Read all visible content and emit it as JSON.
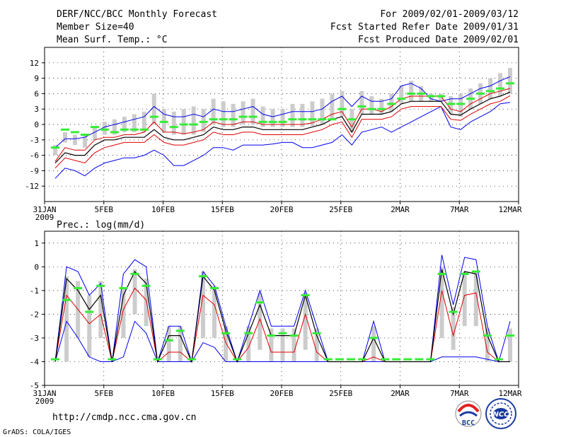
{
  "header": {
    "title": "DERF/NCC/BCC Monthly Forecast",
    "member_size": "Member Size=40",
    "variable1": "Mean Surf. Temp.: °C",
    "period": "For 2009/02/01-2009/03/12",
    "refer_date": "Fcst Started Refer Date 2009/01/31",
    "produced_date": "Fcst Produced Date 2009/02/01"
  },
  "footer": {
    "url": "http://cmdp.ncc.cma.gov.cn",
    "grads": "GrADS: COLA/IGES",
    "logo_bcc": "BCC",
    "logo_ncc": "NCC"
  },
  "colors": {
    "ensemble_max_min": "#0000ee",
    "ensemble_std": "#dd0000",
    "ensemble_mean": "#000000",
    "climatology": "#33ee33",
    "spread_bar": "#cccccc",
    "grid": "#000000"
  },
  "chart_data": [
    {
      "type": "line",
      "title": "Mean Surf. Temp.: °C",
      "x_ticks": [
        "31JAN",
        "5FEB",
        "10FEB",
        "15FEB",
        "20FEB",
        "25FEB",
        "2MAR",
        "7MAR",
        "12MAR"
      ],
      "x_year": "2009",
      "ylim": [
        -15,
        15
      ],
      "y_ticks": [
        "-12",
        "-9",
        "-6",
        "-3",
        "0",
        "3",
        "6",
        "9",
        "12"
      ],
      "y_tick_values": [
        -12,
        -9,
        -6,
        -3,
        0,
        3,
        6,
        9,
        12
      ],
      "series": [
        {
          "name": "max",
          "values": [
            -10.5,
            -8.5,
            -9,
            -10,
            -8.5,
            -7.5,
            -7,
            -6.5,
            -6.5,
            -6,
            -5,
            -6,
            -8,
            -8,
            -7,
            -6,
            -4.5,
            -4.5,
            -5,
            -4,
            -4,
            -4,
            -3.8,
            -3.5,
            -3.5,
            -4.5,
            -4.5,
            -4,
            -3.5,
            -2,
            -4,
            -1.5,
            -1,
            -0.5,
            -1.5,
            -0.5,
            0.5,
            1.5,
            2.5,
            3.5,
            -0.5,
            -1,
            0.5,
            1.5,
            2.5,
            4,
            4.3
          ]
        },
        {
          "name": "upper",
          "values": [
            -4.5,
            -2.8,
            -2.8,
            -2.5,
            -1.5,
            -0.5,
            0,
            0.5,
            1,
            1.5,
            3.5,
            2,
            1.5,
            1.5,
            2,
            1.5,
            3,
            2.5,
            2.5,
            3,
            3.5,
            2,
            1.5,
            2,
            2.5,
            2.5,
            2.5,
            3,
            4.5,
            5.5,
            3.5,
            5.5,
            4.5,
            4.5,
            5,
            7.5,
            8,
            7,
            5,
            4.5,
            5,
            5,
            6,
            7,
            7.5,
            8.5,
            9.3
          ]
        },
        {
          "name": "std_hi",
          "values": [
            -7.2,
            -4.5,
            -5,
            -5,
            -3,
            -2.5,
            -2.5,
            -2,
            -2,
            -1.5,
            0.5,
            -1.5,
            -1.5,
            -1.8,
            -1.5,
            -1,
            0.5,
            0,
            0,
            0.5,
            0.5,
            0,
            0,
            0,
            0,
            0,
            0.3,
            1,
            2,
            2.5,
            -0.5,
            3,
            3,
            2.5,
            3.5,
            5,
            5.5,
            5.5,
            5.5,
            5.5,
            3,
            2.5,
            4,
            5,
            6,
            6.5,
            7
          ]
        },
        {
          "name": "mean",
          "values": [
            -7.5,
            -5.5,
            -6,
            -6,
            -4,
            -3,
            -3,
            -2.5,
            -2.5,
            -2.5,
            -1,
            -2.5,
            -3,
            -3,
            -2.5,
            -2,
            -0.5,
            -1,
            -1,
            -0.5,
            -0.5,
            -1,
            -1,
            -1,
            -1,
            -1,
            -0.5,
            0,
            1,
            1.5,
            -1.5,
            2,
            2,
            2,
            2.5,
            4,
            4.5,
            4.5,
            4.5,
            4.5,
            2,
            1.8,
            3,
            4,
            5,
            5.5,
            6.3
          ]
        },
        {
          "name": "std_lo",
          "values": [
            -8.5,
            -6.5,
            -7,
            -7.5,
            -5.5,
            -4.5,
            -4,
            -3.5,
            -3.5,
            -3.5,
            -2,
            -3.5,
            -4,
            -4,
            -3.5,
            -3,
            -1.5,
            -2,
            -2,
            -1.5,
            -1.5,
            -2,
            -2,
            -2,
            -2,
            -2,
            -1.5,
            -1,
            0,
            0.5,
            -2.5,
            1,
            1,
            1,
            1.5,
            3,
            3.5,
            3.5,
            3.5,
            3.5,
            1,
            0.8,
            2,
            3,
            4,
            4.5,
            5.6
          ]
        },
        {
          "name": "climatology",
          "values": [
            -4.5,
            -1,
            -1.5,
            -2,
            -0.5,
            -1,
            -1.5,
            -1,
            -1,
            -1,
            1.5,
            0.5,
            -0.5,
            0,
            0,
            0.5,
            1,
            1,
            1,
            1.5,
            1.5,
            0.5,
            0.5,
            0.5,
            1,
            1,
            1,
            1,
            1,
            3,
            1,
            3.5,
            3,
            3,
            4,
            5,
            6,
            6,
            5.5,
            5.5,
            4,
            4,
            5,
            6,
            6.5,
            7,
            8
          ]
        },
        {
          "name": "bar_top",
          "values": [
            -4,
            -1.5,
            -2,
            -2,
            -0.5,
            0.5,
            1,
            1.5,
            2,
            2.5,
            6,
            3,
            2.5,
            3,
            3.5,
            3,
            5,
            4.5,
            4,
            4.5,
            5,
            3.5,
            3,
            3,
            4,
            4,
            4.5,
            5,
            6,
            6.5,
            3,
            6.5,
            5.5,
            5,
            6,
            7.5,
            8.5,
            7.5,
            6,
            6,
            5.5,
            6,
            7,
            8,
            9,
            10,
            11
          ]
        },
        {
          "name": "bar_bottom",
          "values": [
            -6,
            -3.5,
            -4,
            -4.5,
            -3,
            -2,
            -2,
            -1.5,
            -1.5,
            -1.5,
            0,
            -1.5,
            -2,
            -2,
            -2,
            -1.5,
            0,
            -0.5,
            -0.5,
            0,
            0,
            -0.5,
            -0.5,
            -0.5,
            -0.5,
            -0.5,
            -0.3,
            0,
            1,
            1.5,
            -1.5,
            2,
            2,
            2,
            2.5,
            4,
            4.5,
            4.5,
            4.5,
            4.5,
            2,
            1.5,
            3,
            4,
            5,
            5.5,
            6
          ]
        }
      ]
    },
    {
      "type": "line",
      "title": "Prec.: log(mm/d)",
      "x_ticks": [
        "31JAN",
        "5FEB",
        "10FEB",
        "15FEB",
        "20FEB",
        "25FEB",
        "2MAR",
        "7MAR",
        "12MAR"
      ],
      "x_year": "2009",
      "ylim": [
        -5,
        1.5
      ],
      "y_ticks": [
        "-5",
        "-4",
        "-3",
        "-2",
        "-1",
        "0",
        "1"
      ],
      "y_tick_values": [
        -5,
        -4,
        -3,
        -2,
        -1,
        0,
        1
      ],
      "series": [
        {
          "name": "max",
          "values": [
            -4,
            0,
            -0.2,
            -1.2,
            -0.7,
            -4,
            -0.3,
            0.3,
            0,
            -4,
            -2.5,
            -2.5,
            -4,
            -0.2,
            -0.8,
            -2.5,
            -4,
            -2.5,
            -1,
            -2.5,
            -2.5,
            -2.5,
            -1,
            -2.5,
            -4,
            -4,
            -4,
            -4,
            -2.3,
            -4,
            -4,
            -4,
            -4,
            -4,
            0.5,
            -1.6,
            0.4,
            0.3,
            -2.5,
            -4,
            -2.3
          ]
        },
        {
          "name": "mean",
          "values": [
            -4,
            -0.5,
            -1,
            -1.8,
            -1.2,
            -4,
            -1.2,
            -0.2,
            -0.7,
            -4,
            -2.9,
            -2.9,
            -4,
            -0.4,
            -1,
            -2.7,
            -4,
            -2.8,
            -1.6,
            -2.9,
            -2.9,
            -2.9,
            -1.2,
            -2.9,
            -4,
            -4,
            -4,
            -4,
            -3,
            -4,
            -4,
            -4,
            -4,
            -4,
            -0.1,
            -2,
            -0.2,
            -0.3,
            -2.9,
            -4,
            -4
          ]
        },
        {
          "name": "std_lo",
          "values": [
            -4,
            -1.2,
            -1.8,
            -2.4,
            -2,
            -4,
            -1.8,
            -0.9,
            -1.4,
            -4,
            -3.6,
            -3.6,
            -4,
            -1.2,
            -1.6,
            -3.2,
            -4,
            -3.4,
            -2.2,
            -3.6,
            -3.6,
            -3.6,
            -2,
            -3.6,
            -4,
            -4,
            -4,
            -4,
            -3.8,
            -4,
            -4,
            -4,
            -4,
            -4,
            -1,
            -2.9,
            -1.2,
            -1.1,
            -3.6,
            -4,
            -4
          ]
        },
        {
          "name": "min",
          "values": [
            -4,
            -2.3,
            -3,
            -3.8,
            -4,
            -4,
            -3.8,
            -2.3,
            -2.8,
            -4,
            -4,
            -4,
            -4,
            -3.2,
            -3.4,
            -4,
            -4,
            -4,
            -4,
            -4,
            -4,
            -4,
            -4,
            -4,
            -4,
            -4,
            -4,
            -4,
            -4,
            -4,
            -4,
            -4,
            -4,
            -4,
            -3.8,
            -3.8,
            -3.8,
            -3.8,
            -3.9,
            -4,
            -4
          ]
        },
        {
          "name": "climatology",
          "values": [
            -3.9,
            -1.4,
            -0.9,
            -1.9,
            -0.8,
            -3.9,
            -0.9,
            -0.3,
            -0.8,
            -3.9,
            -3.1,
            -2.7,
            -3.9,
            -0.4,
            -0.9,
            -2.8,
            -3.9,
            -2.8,
            -1.5,
            -2.9,
            -2.8,
            -2.9,
            -1.2,
            -2.8,
            -3.9,
            -3.9,
            -3.9,
            -3.9,
            -3,
            -3.9,
            -3.9,
            -3.9,
            -3.9,
            -3.9,
            -0.3,
            -1.9,
            -0.3,
            -0.2,
            -2.9,
            -3.9,
            -2.9
          ]
        },
        {
          "name": "bar_top",
          "values": [
            -4,
            -0.4,
            -0.6,
            -1.2,
            -0.6,
            -4,
            -0.9,
            -0.1,
            -0.5,
            -4,
            -2.5,
            -2.5,
            -4,
            -0.2,
            -0.8,
            -2.5,
            -4,
            -2.5,
            -1.1,
            -2.6,
            -2.6,
            -2.6,
            -1.1,
            -2.6,
            -4,
            -4,
            -4,
            -4,
            -2.5,
            -4,
            -4,
            -4,
            -4,
            -4,
            0,
            -1.7,
            -0.2,
            -0.2,
            -2.6,
            -4,
            -2.6
          ]
        },
        {
          "name": "bar_bottom",
          "values": [
            -4,
            -4,
            -3,
            -3.8,
            -3,
            -4,
            -3,
            -2,
            -2.5,
            -4,
            -4,
            -4,
            -4,
            -3,
            -3,
            -4,
            -4,
            -4,
            -3.5,
            -4,
            -4,
            -4,
            -3.5,
            -4,
            -4,
            -4,
            -4,
            -4,
            -4,
            -4,
            -4,
            -4,
            -4,
            -4,
            -3,
            -3.5,
            -2.5,
            -2.5,
            -4,
            -4,
            -4
          ]
        }
      ]
    }
  ]
}
